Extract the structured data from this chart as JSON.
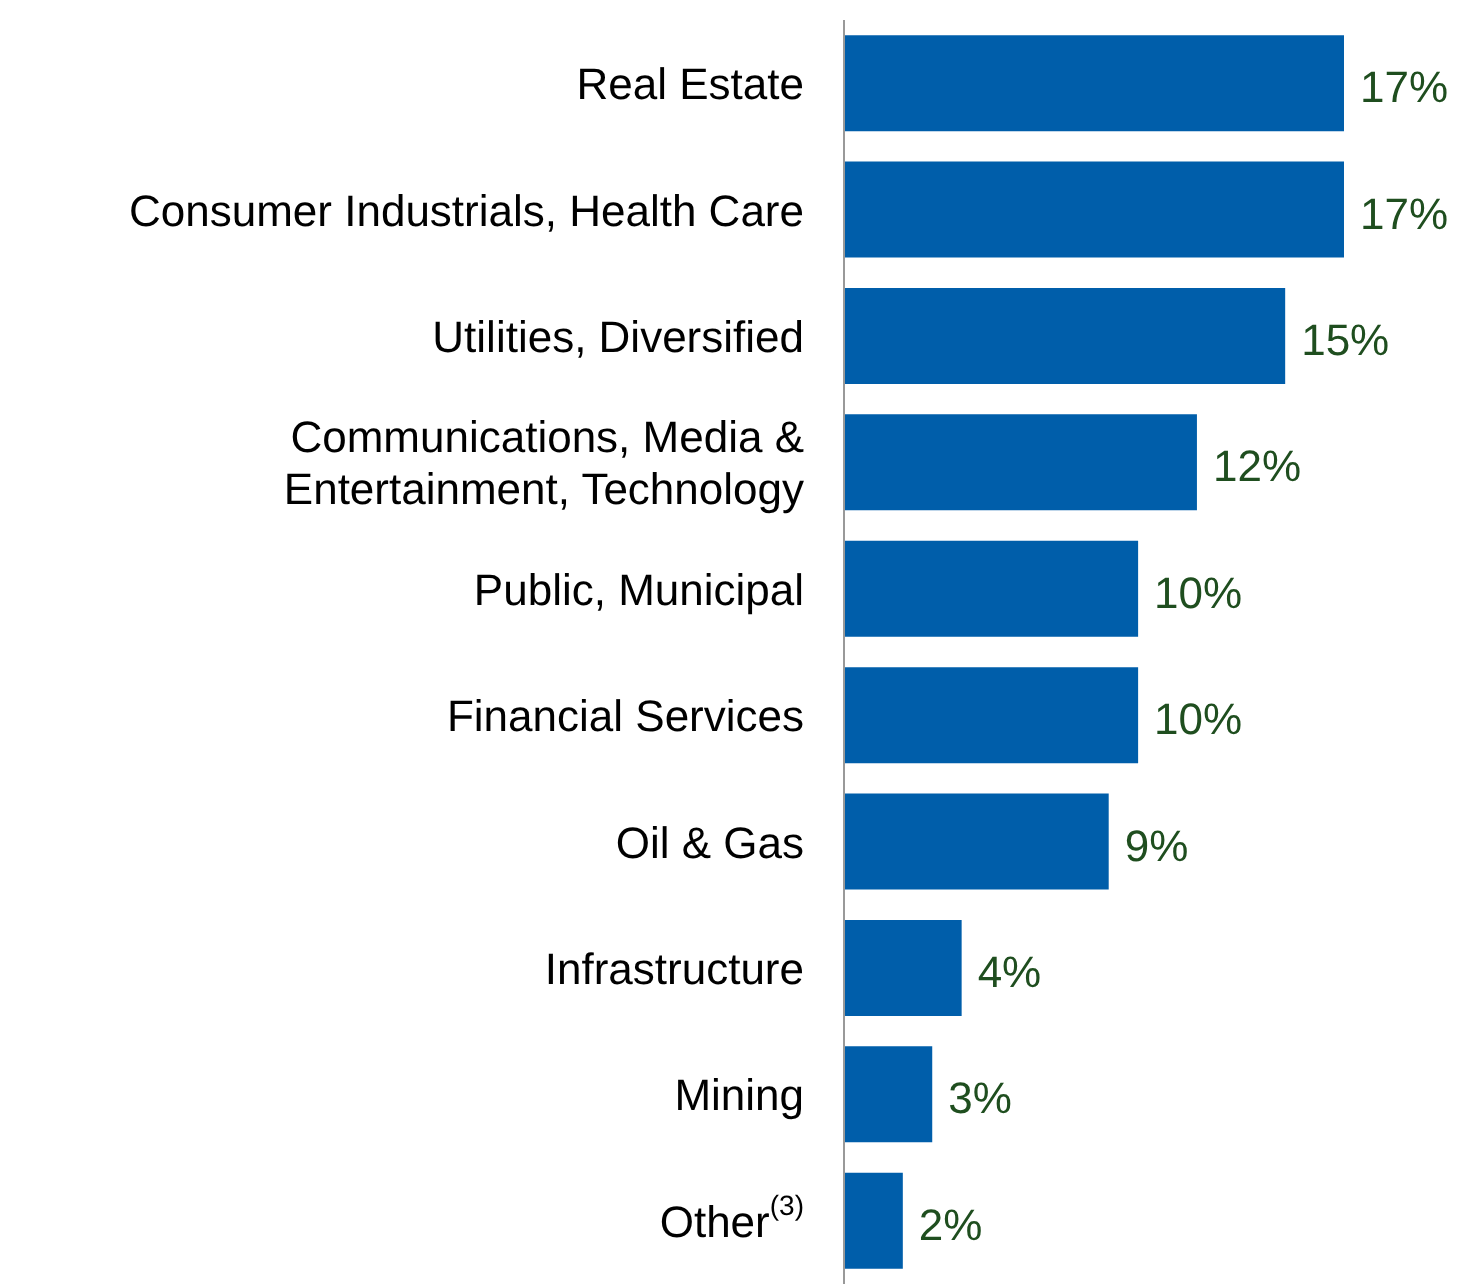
{
  "chart_data": {
    "type": "bar",
    "orientation": "horizontal",
    "categories": [
      "Real Estate",
      "Consumer Industrials, Health Care",
      "Utilities, Diversified",
      "Communications, Media & Entertainment, Technology",
      "Public, Municipal",
      "Financial Services",
      "Oil & Gas",
      "Infrastructure",
      "Mining",
      "Other$^{(3)}$"
    ],
    "values": [
      17,
      17,
      15,
      12,
      10,
      10,
      9,
      4,
      3,
      2
    ],
    "value_labels": [
      "17%",
      "17%",
      "15%",
      "12%",
      "10%",
      "10%",
      "9%",
      "4%",
      "3%",
      "2%"
    ],
    "color": "#005eaa"
  }
}
